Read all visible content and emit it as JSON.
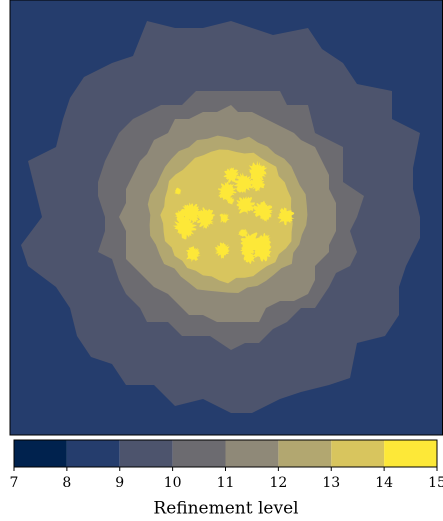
{
  "chart_data": {
    "type": "heatmap",
    "levels": [
      8,
      9,
      10,
      11,
      12,
      13,
      14
    ],
    "colorbar": {
      "label": "Refinement level",
      "lim": [
        7,
        15
      ],
      "ticks": [
        7,
        8,
        9,
        10,
        11,
        12,
        13,
        14,
        15
      ],
      "colors": [
        "#00224e",
        "#253d6d",
        "#4d546d",
        "#6c6b70",
        "#8f8978",
        "#b2a770",
        "#d8c55e",
        "#fde838"
      ]
    }
  }
}
